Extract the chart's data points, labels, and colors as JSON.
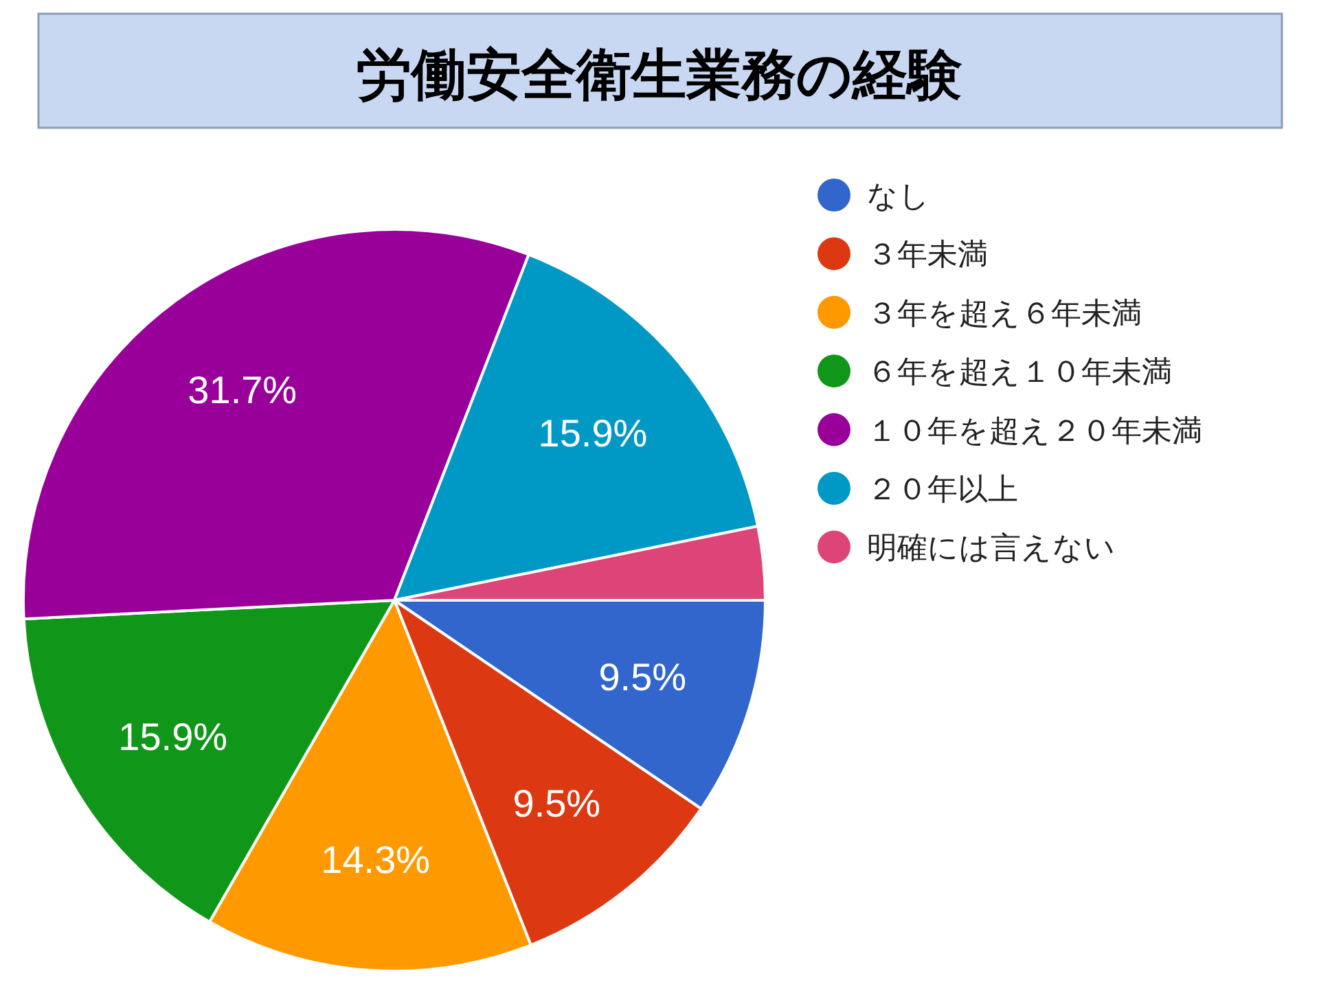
{
  "chart_data": {
    "type": "pie",
    "title": "労働安全衛生業務の経験",
    "categories": [
      "なし",
      "３年未満",
      "３年を超え６年未満",
      "６年を超え１０年未満",
      "１０年を超え２０年未満",
      "２０年以上",
      "明確には言えない"
    ],
    "values": [
      9.5,
      9.5,
      14.3,
      15.9,
      31.7,
      15.9,
      3.2
    ],
    "colors": [
      "#3366cc",
      "#dc3912",
      "#ff9900",
      "#109618",
      "#990099",
      "#0099c6",
      "#dd4477"
    ],
    "value_labels": [
      "9.5%",
      "9.5%",
      "14.3%",
      "15.9%",
      "31.7%",
      "15.9%",
      null
    ],
    "legend": "right"
  }
}
